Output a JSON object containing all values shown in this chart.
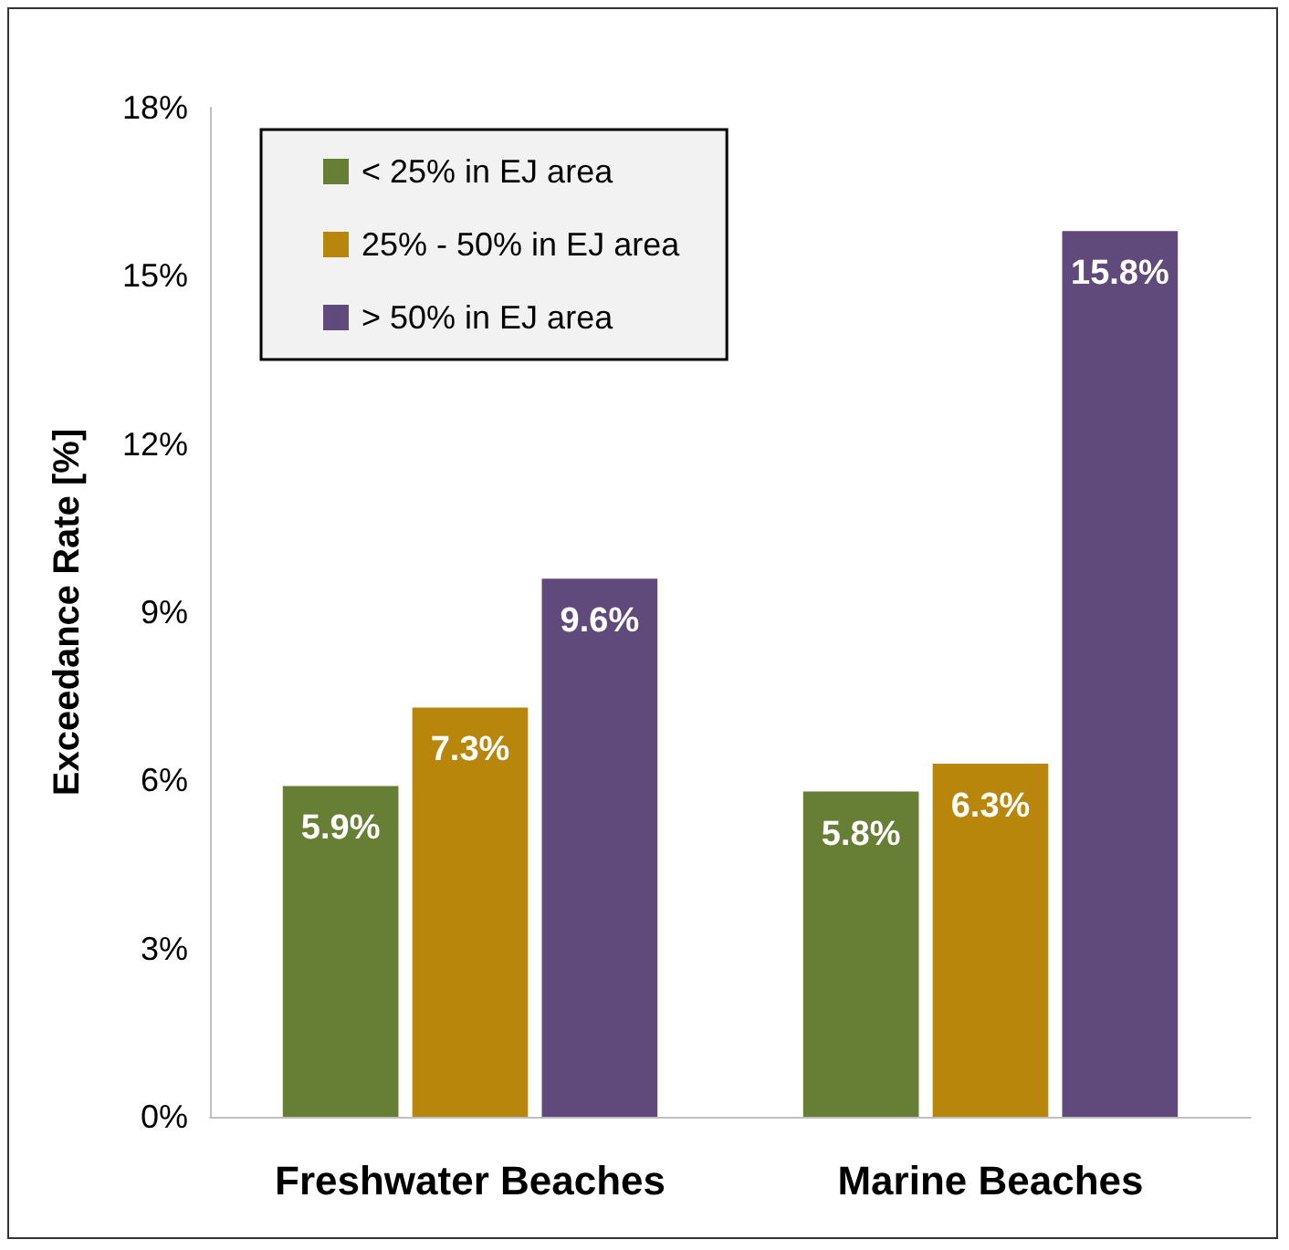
{
  "chart_data": {
    "type": "bar",
    "ylabel": "Exceedance Rate [%]",
    "categories": [
      "Freshwater Beaches",
      "Marine Beaches"
    ],
    "series": [
      {
        "name": "< 25% in EJ area",
        "color": "#677f35",
        "values": [
          5.9,
          5.8
        ],
        "value_labels": [
          "5.9%",
          "5.8%"
        ]
      },
      {
        "name": "25% - 50% in EJ area",
        "color": "#b8860b",
        "values": [
          7.3,
          6.3
        ],
        "value_labels": [
          "7.3%",
          "6.3%"
        ]
      },
      {
        "name": "> 50% in EJ area",
        "color": "#604a7b",
        "values": [
          9.6,
          15.8
        ],
        "value_labels": [
          "9.6%",
          "15.8%"
        ]
      }
    ],
    "ylim": [
      0,
      18
    ],
    "yticks": [
      {
        "value": 0,
        "label": "0%"
      },
      {
        "value": 3,
        "label": "3%"
      },
      {
        "value": 6,
        "label": "6%"
      },
      {
        "value": 9,
        "label": "9%"
      },
      {
        "value": 12,
        "label": "12%"
      },
      {
        "value": 15,
        "label": "15%"
      },
      {
        "value": 18,
        "label": "18%"
      }
    ],
    "grid": false,
    "legend": "top left"
  }
}
